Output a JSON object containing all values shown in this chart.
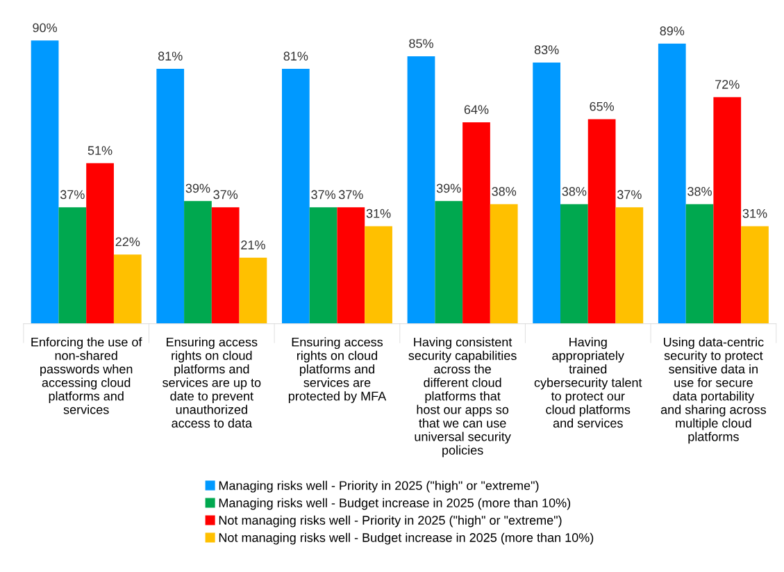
{
  "chart_data": {
    "type": "bar",
    "categories": [
      "Enforcing the use of\nnon-shared\npasswords when\naccessing cloud\nplatforms and\nservices",
      "Ensuring access\nrights on cloud\nplatforms and\nservices are up to\ndate to prevent\nunauthorized\naccess to data",
      "Ensuring access\nrights on cloud\nplatforms and\nservices are\nprotected by MFA",
      "Having consistent\nsecurity capabilities\nacross the\ndifferent cloud\nplatforms that\nhost our apps so\nthat we can use\nuniversal security\npolicies",
      "Having\nappropriately\ntrained\ncybersecurity talent\nto protect our\ncloud platforms\nand services",
      "Using data-centric\nsecurity to protect\nsensitive data in\nuse for secure\ndata portability\nand sharing across\nmultiple cloud\nplatforms"
    ],
    "series": [
      {
        "name": "Managing risks well - Priority in 2025 (\"high\" or \"extreme\")",
        "color": "#0099ff",
        "values": [
          90,
          81,
          81,
          85,
          83,
          89
        ],
        "value_labels": [
          "90%",
          "81%",
          "81%",
          "85%",
          "83%",
          "89%"
        ]
      },
      {
        "name": "Managing risks well - Budget increase in 2025 (more than 10%)",
        "color": "#00a84f",
        "values": [
          37,
          39,
          37,
          39,
          38,
          38
        ],
        "value_labels": [
          "37%",
          "39%",
          "37%",
          "39%",
          "38%",
          "38%"
        ]
      },
      {
        "name": "Not managing risks well - Priority in 2025 (\"high\" or \"extreme\")",
        "color": "#ff0000",
        "values": [
          51,
          37,
          37,
          64,
          65,
          72
        ],
        "value_labels": [
          "51%",
          "37%",
          "37%",
          "64%",
          "65%",
          "72%"
        ]
      },
      {
        "name": "Not managing risks well - Budget increase in 2025 (more than 10%)",
        "color": "#ffc000",
        "values": [
          22,
          21,
          31,
          38,
          37,
          31
        ],
        "value_labels": [
          "22%",
          "21%",
          "31%",
          "38%",
          "37%",
          "31%"
        ]
      }
    ],
    "tick_labels": "x",
    "legend": "bottom"
  }
}
